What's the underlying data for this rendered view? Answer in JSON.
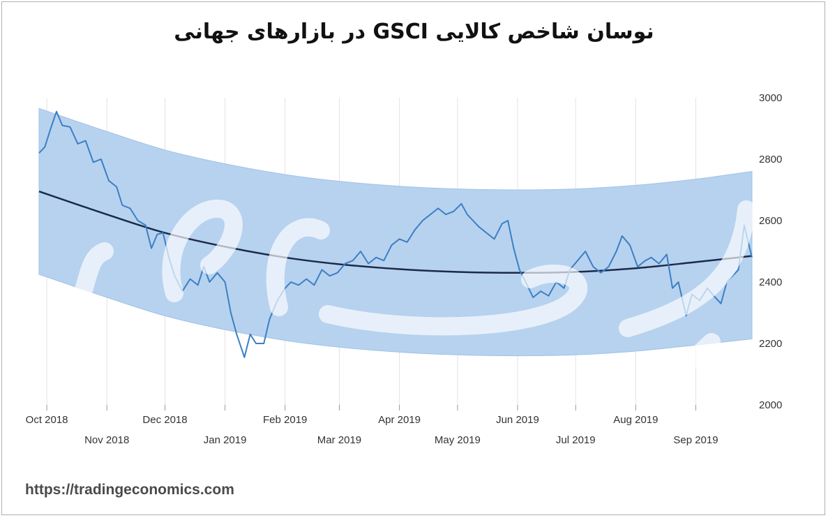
{
  "title": "نوسان شاخص کالایی GSCI  در بازارهای جهانی",
  "source": "https://tradingeconomics.com",
  "colors": {
    "line": "#3b7fc4",
    "trend": "#1b2a4a",
    "band_fill": "#b7d2ef",
    "band_edge": "#9ec2e8",
    "grid": "#e3e3e3"
  },
  "chart_data": {
    "type": "line",
    "ylim": [
      2000,
      3000
    ],
    "y_ticks": [
      2000,
      2200,
      2400,
      2600,
      2800,
      3000
    ],
    "x_range": [
      "2018-09-27",
      "2019-09-30"
    ],
    "x_ticks_top": [
      {
        "label": "Oct 2018",
        "date": "2018-10-01"
      },
      {
        "label": "Dec 2018",
        "date": "2018-12-01"
      },
      {
        "label": "Feb 2019",
        "date": "2019-02-01"
      },
      {
        "label": "Apr 2019",
        "date": "2019-04-01"
      },
      {
        "label": "Jun 2019",
        "date": "2019-06-01"
      },
      {
        "label": "Aug 2019",
        "date": "2019-08-01"
      }
    ],
    "x_ticks_bottom": [
      {
        "label": "Nov 2018",
        "date": "2018-11-01"
      },
      {
        "label": "Jan 2019",
        "date": "2019-01-01"
      },
      {
        "label": "Mar 2019",
        "date": "2019-03-01"
      },
      {
        "label": "May 2019",
        "date": "2019-05-01"
      },
      {
        "label": "Jul 2019",
        "date": "2019-07-01"
      },
      {
        "label": "Sep 2019",
        "date": "2019-09-01"
      }
    ],
    "grid": "vertical",
    "series": [
      {
        "values": [
          [
            "2018-09-27",
            2820
          ],
          [
            "2018-09-30",
            2840
          ],
          [
            "2018-10-03",
            2900
          ],
          [
            "2018-10-06",
            2955
          ],
          [
            "2018-10-09",
            2910
          ],
          [
            "2018-10-13",
            2905
          ],
          [
            "2018-10-17",
            2850
          ],
          [
            "2018-10-21",
            2860
          ],
          [
            "2018-10-25",
            2790
          ],
          [
            "2018-10-29",
            2800
          ],
          [
            "2018-11-02",
            2730
          ],
          [
            "2018-11-06",
            2710
          ],
          [
            "2018-11-09",
            2650
          ],
          [
            "2018-11-13",
            2640
          ],
          [
            "2018-11-17",
            2600
          ],
          [
            "2018-11-21",
            2585
          ],
          [
            "2018-11-24",
            2510
          ],
          [
            "2018-11-27",
            2555
          ],
          [
            "2018-11-30",
            2560
          ],
          [
            "2018-12-03",
            2480
          ],
          [
            "2018-12-06",
            2420
          ],
          [
            "2018-12-10",
            2370
          ],
          [
            "2018-12-14",
            2410
          ],
          [
            "2018-12-18",
            2390
          ],
          [
            "2018-12-21",
            2450
          ],
          [
            "2018-12-24",
            2400
          ],
          [
            "2018-12-28",
            2430
          ],
          [
            "2019-01-01",
            2400
          ],
          [
            "2019-01-04",
            2300
          ],
          [
            "2019-01-07",
            2230
          ],
          [
            "2019-01-11",
            2155
          ],
          [
            "2019-01-14",
            2230
          ],
          [
            "2019-01-17",
            2200
          ],
          [
            "2019-01-21",
            2200
          ],
          [
            "2019-01-24",
            2280
          ],
          [
            "2019-01-28",
            2340
          ],
          [
            "2019-02-01",
            2380
          ],
          [
            "2019-02-04",
            2400
          ],
          [
            "2019-02-08",
            2390
          ],
          [
            "2019-02-12",
            2410
          ],
          [
            "2019-02-16",
            2390
          ],
          [
            "2019-02-20",
            2440
          ],
          [
            "2019-02-24",
            2420
          ],
          [
            "2019-02-28",
            2430
          ],
          [
            "2019-03-04",
            2460
          ],
          [
            "2019-03-08",
            2470
          ],
          [
            "2019-03-12",
            2500
          ],
          [
            "2019-03-16",
            2460
          ],
          [
            "2019-03-20",
            2480
          ],
          [
            "2019-03-24",
            2470
          ],
          [
            "2019-03-28",
            2520
          ],
          [
            "2019-04-01",
            2540
          ],
          [
            "2019-04-05",
            2530
          ],
          [
            "2019-04-09",
            2570
          ],
          [
            "2019-04-13",
            2600
          ],
          [
            "2019-04-17",
            2620
          ],
          [
            "2019-04-21",
            2640
          ],
          [
            "2019-04-25",
            2620
          ],
          [
            "2019-04-29",
            2630
          ],
          [
            "2019-05-03",
            2655
          ],
          [
            "2019-05-06",
            2620
          ],
          [
            "2019-05-09",
            2600
          ],
          [
            "2019-05-12",
            2580
          ],
          [
            "2019-05-16",
            2560
          ],
          [
            "2019-05-20",
            2540
          ],
          [
            "2019-05-24",
            2590
          ],
          [
            "2019-05-27",
            2600
          ],
          [
            "2019-05-30",
            2510
          ],
          [
            "2019-06-02",
            2440
          ],
          [
            "2019-06-06",
            2390
          ],
          [
            "2019-06-09",
            2350
          ],
          [
            "2019-06-13",
            2370
          ],
          [
            "2019-06-17",
            2355
          ],
          [
            "2019-06-21",
            2400
          ],
          [
            "2019-06-25",
            2380
          ],
          [
            "2019-06-28",
            2440
          ],
          [
            "2019-07-02",
            2470
          ],
          [
            "2019-07-06",
            2500
          ],
          [
            "2019-07-10",
            2450
          ],
          [
            "2019-07-14",
            2430
          ],
          [
            "2019-07-18",
            2450
          ],
          [
            "2019-07-22",
            2500
          ],
          [
            "2019-07-25",
            2550
          ],
          [
            "2019-07-29",
            2520
          ],
          [
            "2019-08-02",
            2450
          ],
          [
            "2019-08-06",
            2470
          ],
          [
            "2019-08-09",
            2480
          ],
          [
            "2019-08-13",
            2460
          ],
          [
            "2019-08-17",
            2490
          ],
          [
            "2019-08-20",
            2380
          ],
          [
            "2019-08-23",
            2400
          ],
          [
            "2019-08-27",
            2290
          ],
          [
            "2019-08-30",
            2360
          ],
          [
            "2019-09-03",
            2340
          ],
          [
            "2019-09-07",
            2380
          ],
          [
            "2019-09-11",
            2350
          ],
          [
            "2019-09-14",
            2330
          ],
          [
            "2019-09-17",
            2400
          ],
          [
            "2019-09-20",
            2420
          ],
          [
            "2019-09-23",
            2440
          ],
          [
            "2019-09-26",
            2585
          ],
          [
            "2019-09-30",
            2480
          ]
        ]
      }
    ],
    "trendline": [
      [
        "2018-09-27",
        2695
      ],
      [
        "2018-11-01",
        2620
      ],
      [
        "2018-12-01",
        2560
      ],
      [
        "2019-01-01",
        2515
      ],
      [
        "2019-02-01",
        2480
      ],
      [
        "2019-03-01",
        2458
      ],
      [
        "2019-04-01",
        2442
      ],
      [
        "2019-05-01",
        2433
      ],
      [
        "2019-06-01",
        2430
      ],
      [
        "2019-07-01",
        2433
      ],
      [
        "2019-08-01",
        2445
      ],
      [
        "2019-09-01",
        2465
      ],
      [
        "2019-09-30",
        2485
      ]
    ],
    "band_upper": [
      [
        "2018-09-27",
        2965
      ],
      [
        "2018-11-01",
        2890
      ],
      [
        "2018-12-01",
        2830
      ],
      [
        "2019-01-01",
        2785
      ],
      [
        "2019-02-01",
        2750
      ],
      [
        "2019-03-01",
        2728
      ],
      [
        "2019-04-01",
        2712
      ],
      [
        "2019-05-01",
        2703
      ],
      [
        "2019-06-01",
        2700
      ],
      [
        "2019-07-01",
        2703
      ],
      [
        "2019-08-01",
        2715
      ],
      [
        "2019-09-01",
        2735
      ],
      [
        "2019-09-30",
        2760
      ]
    ],
    "band_lower": [
      [
        "2018-09-27",
        2425
      ],
      [
        "2018-11-01",
        2350
      ],
      [
        "2018-12-01",
        2290
      ],
      [
        "2019-01-01",
        2245
      ],
      [
        "2019-02-01",
        2210
      ],
      [
        "2019-03-01",
        2188
      ],
      [
        "2019-04-01",
        2172
      ],
      [
        "2019-05-01",
        2163
      ],
      [
        "2019-06-01",
        2160
      ],
      [
        "2019-07-01",
        2163
      ],
      [
        "2019-08-01",
        2175
      ],
      [
        "2019-09-01",
        2195
      ],
      [
        "2019-09-30",
        2215
      ]
    ]
  }
}
